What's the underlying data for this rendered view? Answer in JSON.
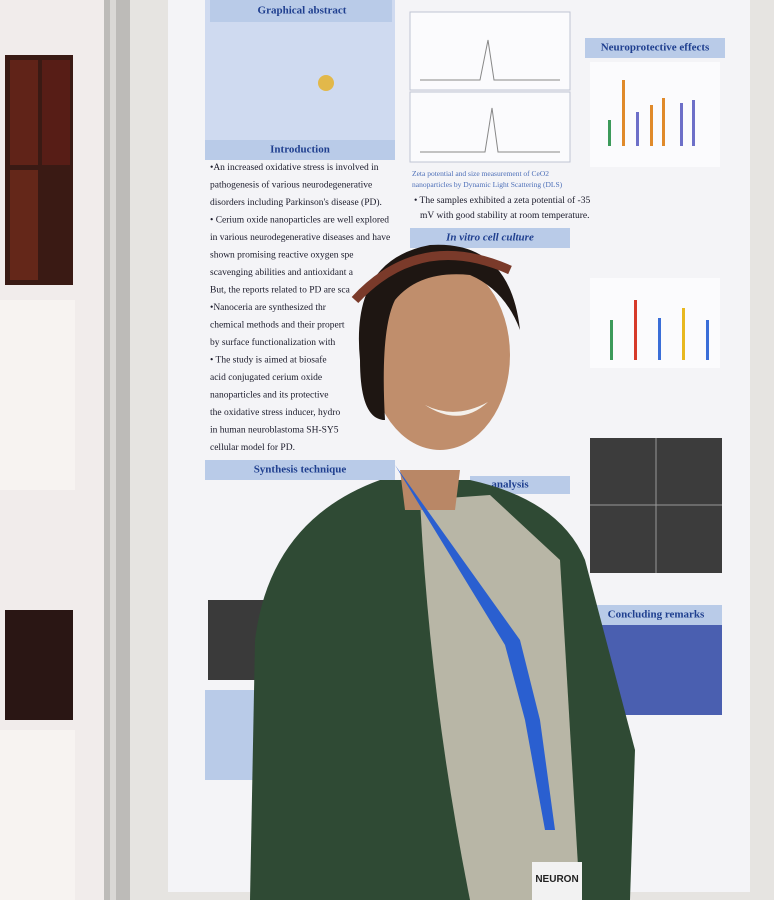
{
  "poster": {
    "sections": {
      "graphical_abstract": "Graphical abstract",
      "introduction": "Introduction",
      "synthesis": "Synthesis technique",
      "in_vitro": "In vitro cell culture",
      "neuroprotective": "Neuroprotective effects",
      "concluding": "Concluding remarks",
      "analysis": "analysis"
    },
    "intro_lines": [
      "•An increased oxidative stress is involved in",
      "pathogenesis of various neurodegenerative",
      "disorders including Parkinson's disease (PD).",
      "• Cerium oxide nanoparticles are well explored",
      "in various neurodegenerative diseases and have",
      "shown promising reactive oxygen spe",
      "scavenging abilities and antioxidant a",
      "But, the reports related to PD are sca",
      "•Nanoceria are synthesized thr",
      "chemical methods and their propert",
      "by surface functionalization with",
      "• The study is aimed at biosafe",
      "acid conjugated cerium oxide",
      "nanoparticles and its protective",
      "the oxidative stress inducer, hydro",
      "in human neuroblastoma SH-SY5",
      "cellular model for PD."
    ],
    "zeta_caption": [
      "Zeta potential and size measurement of CeO2",
      "nanoparticles by Dynamic Light Scattering (DLS)"
    ],
    "zeta_bullet": [
      "• The samples exhibited a zeta potential of -35",
      "mV with good stability at room temperature."
    ],
    "badge": "NEURON"
  }
}
